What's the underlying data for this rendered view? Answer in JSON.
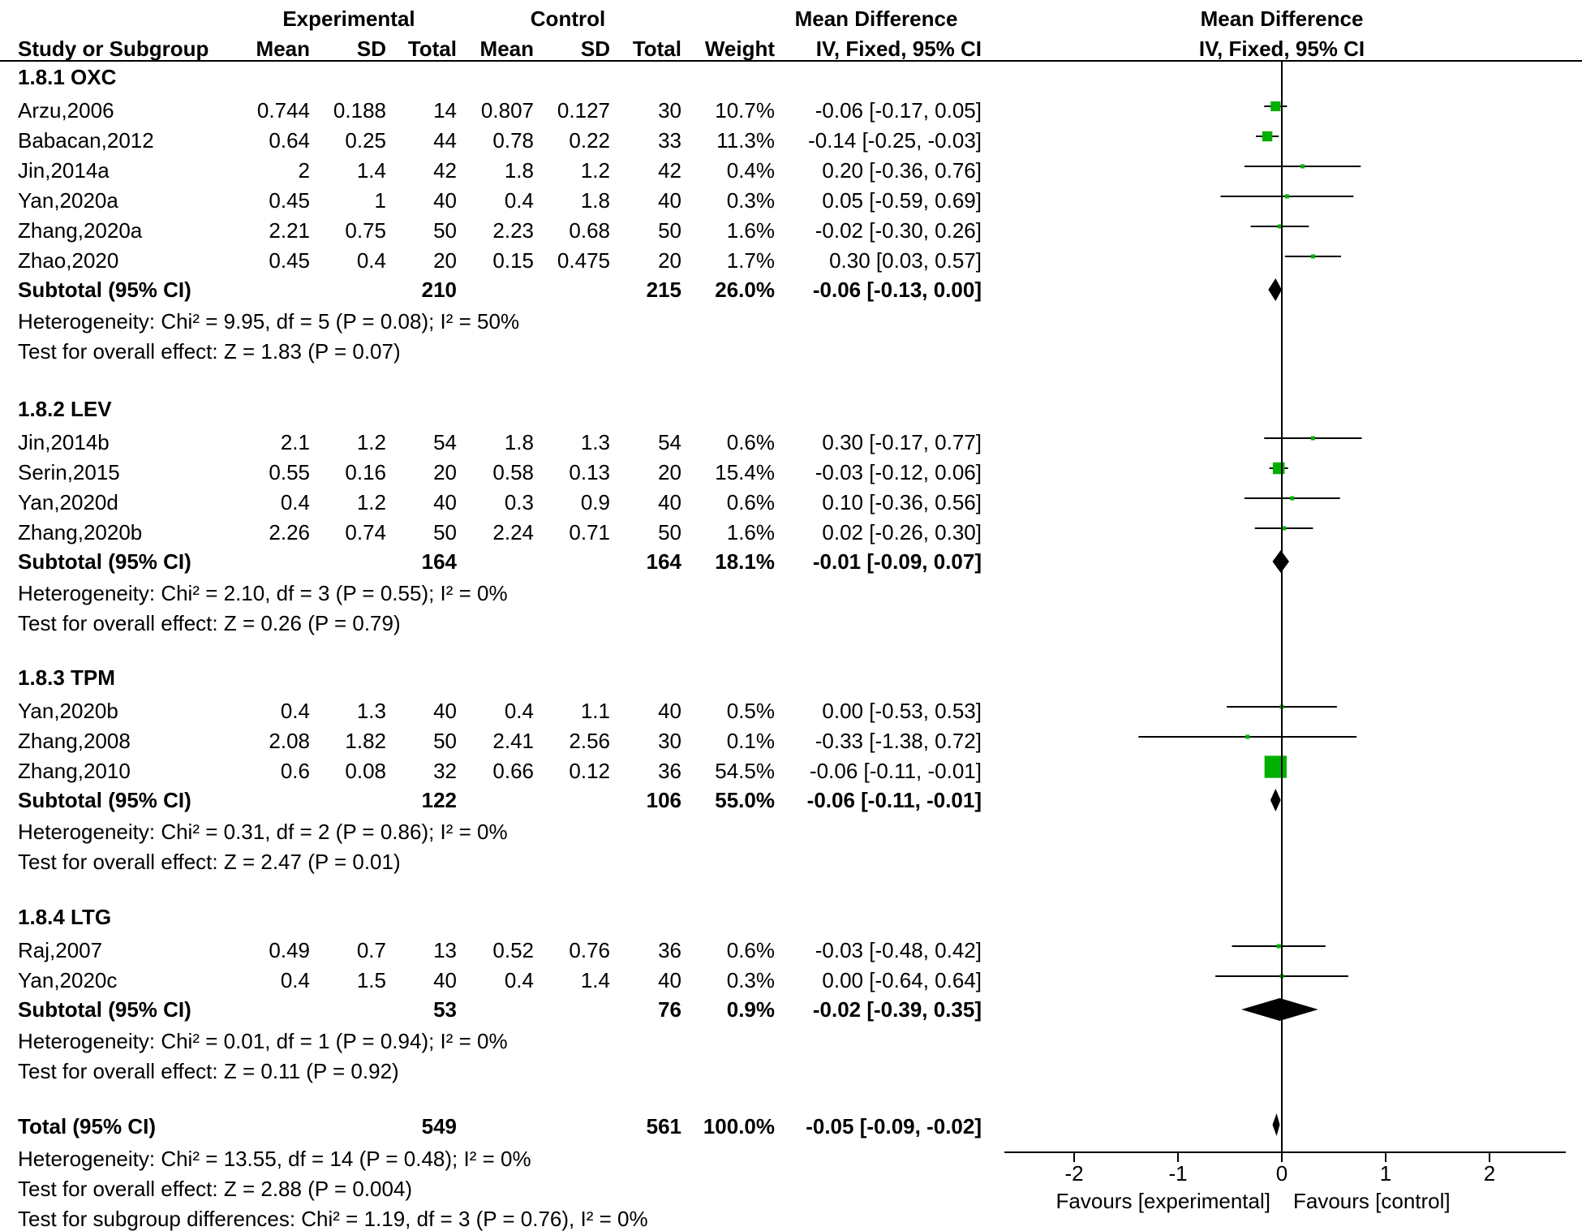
{
  "header": {
    "experimental": "Experimental",
    "control": "Control",
    "md_left": "Mean Difference",
    "md_right": "Mean Difference",
    "study": "Study or Subgroup",
    "mean_e": "Mean",
    "sd_e": "SD",
    "total_e": "Total",
    "mean_c": "Mean",
    "sd_c": "SD",
    "total_c": "Total",
    "weight": "Weight",
    "method_left": "IV, Fixed, 95% CI",
    "method_right": "IV, Fixed, 95% CI"
  },
  "chart_data": {
    "type": "forest",
    "xlim": [
      -2.8,
      2.7
    ],
    "ticks": [
      -2,
      -1,
      0,
      1,
      2
    ],
    "tick_labels": [
      "-2",
      "-1",
      "0",
      "1",
      "2"
    ],
    "favours_left": "Favours [experimental]",
    "favours_right": "Favours [control]",
    "groups": [
      {
        "title": "1.8.1 OXC",
        "studies": [
          {
            "name": "Arzu,2006",
            "mean_e": "0.744",
            "sd_e": "0.188",
            "total_e": "14",
            "mean_c": "0.807",
            "sd_c": "0.127",
            "total_c": "30",
            "weight": "10.7%",
            "ci": "-0.06 [-0.17, 0.05]",
            "md": -0.06,
            "lo": -0.17,
            "hi": 0.05,
            "w": 10.7
          },
          {
            "name": "Babacan,2012",
            "mean_e": "0.64",
            "sd_e": "0.25",
            "total_e": "44",
            "mean_c": "0.78",
            "sd_c": "0.22",
            "total_c": "33",
            "weight": "11.3%",
            "ci": "-0.14 [-0.25, -0.03]",
            "md": -0.14,
            "lo": -0.25,
            "hi": -0.03,
            "w": 11.3
          },
          {
            "name": "Jin,2014a",
            "mean_e": "2",
            "sd_e": "1.4",
            "total_e": "42",
            "mean_c": "1.8",
            "sd_c": "1.2",
            "total_c": "42",
            "weight": "0.4%",
            "ci": "0.20 [-0.36, 0.76]",
            "md": 0.2,
            "lo": -0.36,
            "hi": 0.76,
            "w": 0.4
          },
          {
            "name": "Yan,2020a",
            "mean_e": "0.45",
            "sd_e": "1",
            "total_e": "40",
            "mean_c": "0.4",
            "sd_c": "1.8",
            "total_c": "40",
            "weight": "0.3%",
            "ci": "0.05 [-0.59, 0.69]",
            "md": 0.05,
            "lo": -0.59,
            "hi": 0.69,
            "w": 0.3
          },
          {
            "name": "Zhang,2020a",
            "mean_e": "2.21",
            "sd_e": "0.75",
            "total_e": "50",
            "mean_c": "2.23",
            "sd_c": "0.68",
            "total_c": "50",
            "weight": "1.6%",
            "ci": "-0.02 [-0.30, 0.26]",
            "md": -0.02,
            "lo": -0.3,
            "hi": 0.26,
            "w": 1.6
          },
          {
            "name": "Zhao,2020",
            "mean_e": "0.45",
            "sd_e": "0.4",
            "total_e": "20",
            "mean_c": "0.15",
            "sd_c": "0.475",
            "total_c": "20",
            "weight": "1.7%",
            "ci": "0.30 [0.03, 0.57]",
            "md": 0.3,
            "lo": 0.03,
            "hi": 0.57,
            "w": 1.7
          }
        ],
        "subtotal": {
          "label": "Subtotal (95% CI)",
          "total_e": "210",
          "total_c": "215",
          "weight": "26.0%",
          "ci": "-0.06 [-0.13, 0.00]",
          "md": -0.06,
          "lo": -0.13,
          "hi": 0.0
        },
        "heterogeneity": "Heterogeneity: Chi² = 9.95, df = 5 (P = 0.08); I² = 50%",
        "overall": "Test for overall effect: Z = 1.83 (P = 0.07)"
      },
      {
        "title": "1.8.2 LEV",
        "studies": [
          {
            "name": "Jin,2014b",
            "mean_e": "2.1",
            "sd_e": "1.2",
            "total_e": "54",
            "mean_c": "1.8",
            "sd_c": "1.3",
            "total_c": "54",
            "weight": "0.6%",
            "ci": "0.30 [-0.17, 0.77]",
            "md": 0.3,
            "lo": -0.17,
            "hi": 0.77,
            "w": 0.6
          },
          {
            "name": "Serin,2015",
            "mean_e": "0.55",
            "sd_e": "0.16",
            "total_e": "20",
            "mean_c": "0.58",
            "sd_c": "0.13",
            "total_c": "20",
            "weight": "15.4%",
            "ci": "-0.03 [-0.12, 0.06]",
            "md": -0.03,
            "lo": -0.12,
            "hi": 0.06,
            "w": 15.4
          },
          {
            "name": "Yan,2020d",
            "mean_e": "0.4",
            "sd_e": "1.2",
            "total_e": "40",
            "mean_c": "0.3",
            "sd_c": "0.9",
            "total_c": "40",
            "weight": "0.6%",
            "ci": "0.10 [-0.36, 0.56]",
            "md": 0.1,
            "lo": -0.36,
            "hi": 0.56,
            "w": 0.6
          },
          {
            "name": "Zhang,2020b",
            "mean_e": "2.26",
            "sd_e": "0.74",
            "total_e": "50",
            "mean_c": "2.24",
            "sd_c": "0.71",
            "total_c": "50",
            "weight": "1.6%",
            "ci": "0.02 [-0.26, 0.30]",
            "md": 0.02,
            "lo": -0.26,
            "hi": 0.3,
            "w": 1.6
          }
        ],
        "subtotal": {
          "label": "Subtotal (95% CI)",
          "total_e": "164",
          "total_c": "164",
          "weight": "18.1%",
          "ci": "-0.01 [-0.09, 0.07]",
          "md": -0.01,
          "lo": -0.09,
          "hi": 0.07
        },
        "heterogeneity": "Heterogeneity: Chi² = 2.10, df = 3 (P = 0.55); I² = 0%",
        "overall": "Test for overall effect: Z = 0.26 (P = 0.79)"
      },
      {
        "title": "1.8.3 TPM",
        "studies": [
          {
            "name": "Yan,2020b",
            "mean_e": "0.4",
            "sd_e": "1.3",
            "total_e": "40",
            "mean_c": "0.4",
            "sd_c": "1.1",
            "total_c": "40",
            "weight": "0.5%",
            "ci": "0.00 [-0.53, 0.53]",
            "md": 0.0,
            "lo": -0.53,
            "hi": 0.53,
            "w": 0.5
          },
          {
            "name": "Zhang,2008",
            "mean_e": "2.08",
            "sd_e": "1.82",
            "total_e": "50",
            "mean_c": "2.41",
            "sd_c": "2.56",
            "total_c": "30",
            "weight": "0.1%",
            "ci": "-0.33 [-1.38, 0.72]",
            "md": -0.33,
            "lo": -1.38,
            "hi": 0.72,
            "w": 0.1
          },
          {
            "name": "Zhang,2010",
            "mean_e": "0.6",
            "sd_e": "0.08",
            "total_e": "32",
            "mean_c": "0.66",
            "sd_c": "0.12",
            "total_c": "36",
            "weight": "54.5%",
            "ci": "-0.06 [-0.11, -0.01]",
            "md": -0.06,
            "lo": -0.11,
            "hi": -0.01,
            "w": 54.5
          }
        ],
        "subtotal": {
          "label": "Subtotal (95% CI)",
          "total_e": "122",
          "total_c": "106",
          "weight": "55.0%",
          "ci": "-0.06 [-0.11, -0.01]",
          "md": -0.06,
          "lo": -0.11,
          "hi": -0.01
        },
        "heterogeneity": "Heterogeneity: Chi² = 0.31, df = 2 (P = 0.86); I² = 0%",
        "overall": "Test for overall effect: Z = 2.47 (P = 0.01)"
      },
      {
        "title": "1.8.4 LTG",
        "studies": [
          {
            "name": "Raj,2007",
            "mean_e": "0.49",
            "sd_e": "0.7",
            "total_e": "13",
            "mean_c": "0.52",
            "sd_c": "0.76",
            "total_c": "36",
            "weight": "0.6%",
            "ci": "-0.03 [-0.48, 0.42]",
            "md": -0.03,
            "lo": -0.48,
            "hi": 0.42,
            "w": 0.6
          },
          {
            "name": "Yan,2020c",
            "mean_e": "0.4",
            "sd_e": "1.5",
            "total_e": "40",
            "mean_c": "0.4",
            "sd_c": "1.4",
            "total_c": "40",
            "weight": "0.3%",
            "ci": "0.00 [-0.64, 0.64]",
            "md": 0.0,
            "lo": -0.64,
            "hi": 0.64,
            "w": 0.3
          }
        ],
        "subtotal": {
          "label": "Subtotal (95% CI)",
          "total_e": "53",
          "total_c": "76",
          "weight": "0.9%",
          "ci": "-0.02 [-0.39, 0.35]",
          "md": -0.02,
          "lo": -0.39,
          "hi": 0.35
        },
        "heterogeneity": "Heterogeneity: Chi² = 0.01, df = 1 (P = 0.94); I² = 0%",
        "overall": "Test for overall effect: Z = 0.11 (P = 0.92)"
      }
    ],
    "total": {
      "label": "Total (95% CI)",
      "total_e": "549",
      "total_c": "561",
      "weight": "100.0%",
      "ci": "-0.05 [-0.09, -0.02]",
      "md": -0.05,
      "lo": -0.09,
      "hi": -0.02
    },
    "total_heterogeneity": "Heterogeneity: Chi² = 13.55, df = 14 (P = 0.48); I² = 0%",
    "total_overall": "Test for overall effect: Z = 2.88 (P = 0.004)",
    "subgroup_differences": "Test for subgroup differences: Chi² = 1.19, df = 3 (P = 0.76), I² = 0%"
  },
  "colors": {
    "square": "#00b000",
    "diamond": "#000000",
    "line": "#000000"
  }
}
